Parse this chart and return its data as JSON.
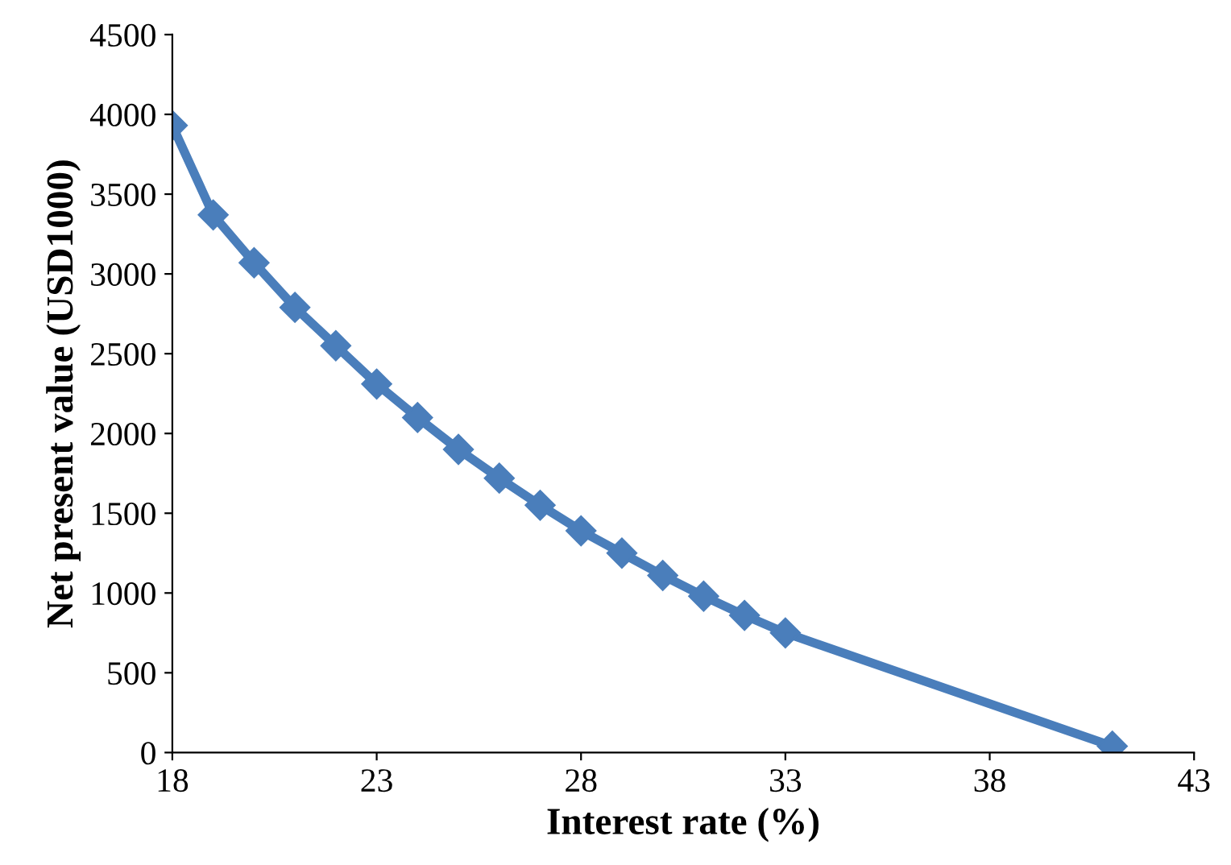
{
  "chart_data": {
    "type": "line",
    "xlabel": "Interest rate (%)",
    "ylabel": "Net present value (USD1000)",
    "x": [
      18,
      19,
      20,
      21,
      22,
      23,
      24,
      25,
      26,
      27,
      28,
      29,
      30,
      31,
      32,
      33,
      41
    ],
    "series": [
      {
        "color": "#4a7ebb",
        "values": [
          3930,
          3370,
          3070,
          2790,
          2550,
          2310,
          2100,
          1900,
          1720,
          1550,
          1390,
          1250,
          1110,
          980,
          860,
          750,
          40
        ]
      }
    ],
    "xlim": [
      18,
      43
    ],
    "xticks": [
      18,
      23,
      28,
      33,
      38,
      43
    ],
    "ylim": [
      0,
      4500
    ],
    "yticks": [
      0,
      500,
      1000,
      1500,
      2000,
      2500,
      3000,
      3500,
      4000,
      4500
    ],
    "grid": false,
    "legend": false,
    "marker": "diamond",
    "line_style": "solid"
  }
}
